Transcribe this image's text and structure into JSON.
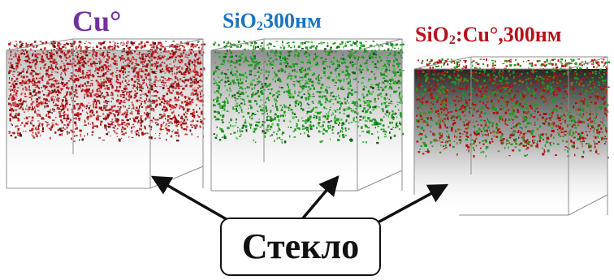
{
  "titles": {
    "cu": "Cu°",
    "sio2_prefix": "SiO",
    "sio2_sub": "2",
    "sio2_suffix": "300нм",
    "mix_prefix": "SiO",
    "mix_sub": "2",
    "mix_suffix": ":Cu°,300нм"
  },
  "glass_label": "Стекло",
  "colors": {
    "cu_title": "#7030a0",
    "sio2_title": "#1e73be",
    "mix_title": "#b5121b",
    "copper_particles": "#b01010",
    "silica_particles": "#1f9a1f"
  },
  "panels": [
    {
      "name": "Cu°",
      "particles": "copper"
    },
    {
      "name": "SiO2 300нм",
      "particles": "silica"
    },
    {
      "name": "SiO2:Cu°,300нм",
      "particles": "mixed"
    }
  ]
}
